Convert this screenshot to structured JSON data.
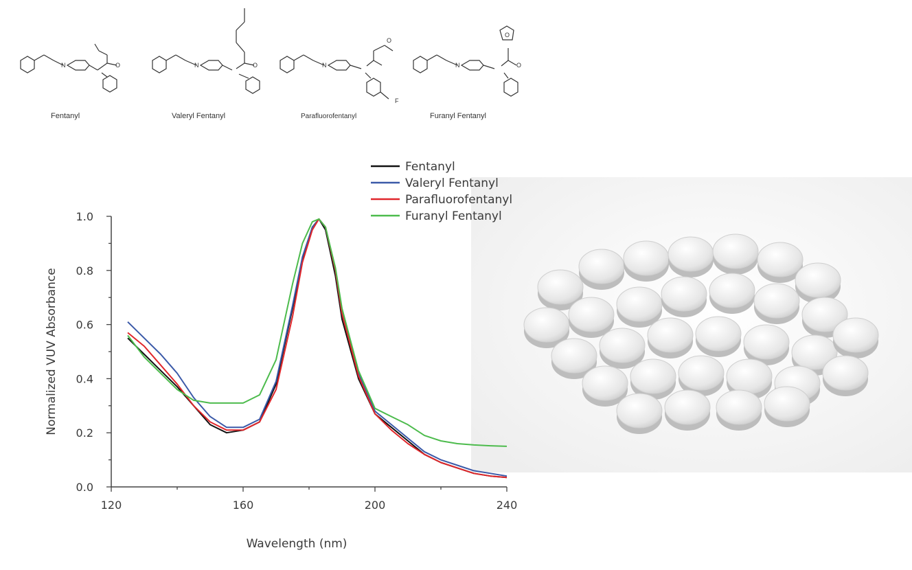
{
  "structures": [
    {
      "name": "Fentanyl"
    },
    {
      "name": "Valeryl Fentanyl"
    },
    {
      "name": "Parafluorofentanyl"
    },
    {
      "name": "Furanyl Fentanyl"
    }
  ],
  "atoms": {
    "N": "N",
    "O": "O",
    "F": "F"
  },
  "colors": {
    "Fentanyl": "#111111",
    "Valeryl Fentanyl": "#3a59a8",
    "Parafluorofentanyl": "#e0262b",
    "Furanyl Fentanyl": "#4cbb4c"
  },
  "chart_data": {
    "type": "line",
    "xlabel": "Wavelength (nm)",
    "ylabel": "Normalized VUV Absorbance",
    "xlim": [
      120,
      240
    ],
    "ylim": [
      0,
      1.0
    ],
    "x_ticks": [
      "120",
      "160",
      "200",
      "240"
    ],
    "y_ticks": [
      "0.0",
      "0.2",
      "0.4",
      "0.6",
      "0.8",
      "1.0"
    ],
    "legend": "top-right",
    "grid": false,
    "series": [
      {
        "name": "Fentanyl",
        "color": "#111111",
        "x": [
          125,
          130,
          135,
          140,
          145,
          150,
          155,
          160,
          165,
          170,
          175,
          178,
          181,
          183,
          185,
          188,
          190,
          195,
          200,
          205,
          210,
          215,
          220,
          225,
          230,
          235,
          240
        ],
        "y": [
          0.55,
          0.49,
          0.43,
          0.37,
          0.3,
          0.23,
          0.2,
          0.21,
          0.24,
          0.38,
          0.66,
          0.84,
          0.96,
          0.99,
          0.95,
          0.78,
          0.62,
          0.4,
          0.27,
          0.22,
          0.17,
          0.12,
          0.09,
          0.07,
          0.05,
          0.04,
          0.035
        ]
      },
      {
        "name": "Valeryl Fentanyl",
        "color": "#3a59a8",
        "x": [
          125,
          130,
          135,
          140,
          145,
          150,
          155,
          160,
          165,
          170,
          175,
          178,
          181,
          183,
          185,
          188,
          190,
          195,
          200,
          205,
          210,
          215,
          220,
          225,
          230,
          235,
          240
        ],
        "y": [
          0.61,
          0.55,
          0.49,
          0.42,
          0.33,
          0.26,
          0.22,
          0.22,
          0.25,
          0.39,
          0.67,
          0.85,
          0.96,
          0.99,
          0.96,
          0.8,
          0.64,
          0.42,
          0.28,
          0.23,
          0.18,
          0.13,
          0.1,
          0.08,
          0.06,
          0.05,
          0.04
        ]
      },
      {
        "name": "Parafluorofentanyl",
        "color": "#e0262b",
        "x": [
          125,
          130,
          135,
          140,
          145,
          150,
          155,
          160,
          165,
          170,
          175,
          178,
          181,
          183,
          185,
          188,
          190,
          195,
          200,
          205,
          210,
          215,
          220,
          225,
          230,
          235,
          240
        ],
        "y": [
          0.57,
          0.52,
          0.45,
          0.38,
          0.3,
          0.24,
          0.21,
          0.21,
          0.24,
          0.36,
          0.63,
          0.83,
          0.95,
          0.99,
          0.96,
          0.8,
          0.64,
          0.41,
          0.27,
          0.21,
          0.16,
          0.12,
          0.09,
          0.07,
          0.05,
          0.04,
          0.035
        ]
      },
      {
        "name": "Furanyl Fentanyl",
        "color": "#4cbb4c",
        "x": [
          125,
          130,
          135,
          140,
          145,
          150,
          155,
          160,
          165,
          170,
          175,
          178,
          181,
          183,
          185,
          188,
          190,
          195,
          200,
          205,
          210,
          215,
          220,
          225,
          230,
          235,
          240
        ],
        "y": [
          0.56,
          0.48,
          0.42,
          0.36,
          0.32,
          0.31,
          0.31,
          0.31,
          0.34,
          0.47,
          0.75,
          0.9,
          0.98,
          0.99,
          0.96,
          0.81,
          0.66,
          0.43,
          0.29,
          0.26,
          0.23,
          0.19,
          0.17,
          0.16,
          0.155,
          0.152,
          0.15
        ]
      }
    ]
  }
}
